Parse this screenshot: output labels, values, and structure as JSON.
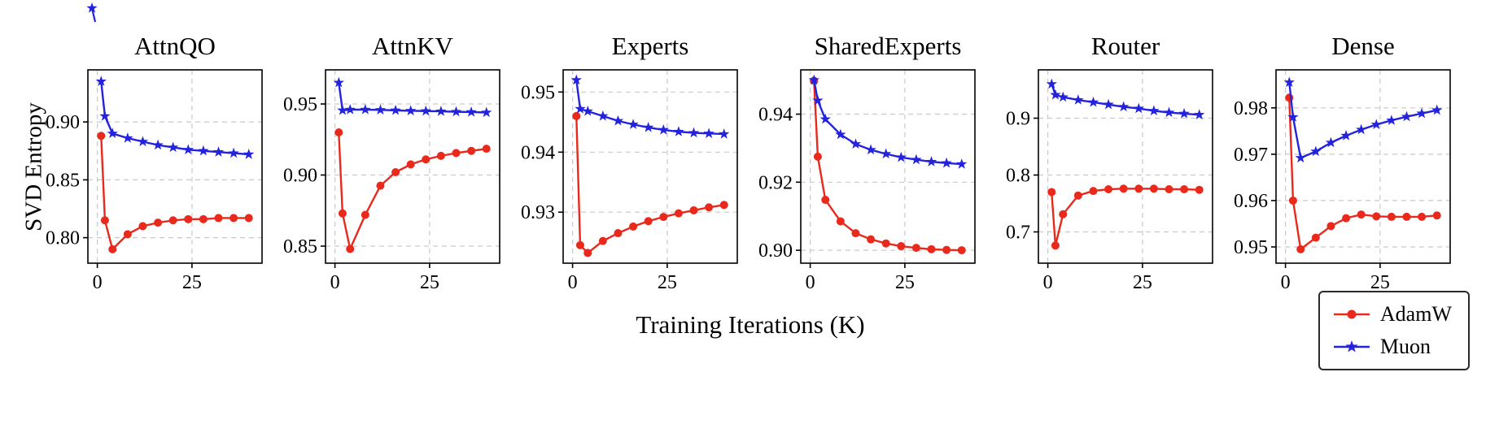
{
  "figure": {
    "ylabel": "SVD Entropy",
    "xlabel": "Training Iterations (K)",
    "legend": [
      {
        "label": "AdamW",
        "color": "#e8291c",
        "marker": "circle"
      },
      {
        "label": "Muon",
        "color": "#2323dd",
        "marker": "star"
      }
    ]
  },
  "chart_data": {
    "type": "line",
    "x": [
      1,
      2,
      4,
      8,
      12,
      16,
      20,
      24,
      28,
      32,
      36,
      40
    ],
    "xlim": [
      -2.5,
      43.5
    ],
    "xticks": [
      0,
      25
    ],
    "xtick_labels": [
      "0",
      "25"
    ],
    "xlabel": "Training Iterations (K)",
    "ylabel": "SVD Entropy",
    "grid": true,
    "legend_position": "bottom-right",
    "colors": {
      "AdamW": "#e8291c",
      "Muon": "#2323dd"
    },
    "markers": {
      "AdamW": "circle",
      "Muon": "star"
    },
    "charts": [
      {
        "title": "AttnQO",
        "ylim": [
          0.778,
          0.945
        ],
        "yticks": [
          0.8,
          0.85,
          0.9
        ],
        "ytick_labels": [
          "0.80",
          "0.85",
          "0.90"
        ],
        "series": [
          {
            "name": "AdamW",
            "values": [
              0.888,
              0.815,
              0.79,
              0.803,
              0.81,
              0.813,
              0.815,
              0.816,
              0.816,
              0.817,
              0.817,
              0.817
            ]
          },
          {
            "name": "Muon",
            "values": [
              0.935,
              0.905,
              0.89,
              0.886,
              0.883,
              0.88,
              0.878,
              0.876,
              0.875,
              0.874,
              0.873,
              0.872
            ]
          }
        ]
      },
      {
        "title": "AttnKV",
        "ylim": [
          0.838,
          0.974
        ],
        "yticks": [
          0.85,
          0.9,
          0.95
        ],
        "ytick_labels": [
          "0.85",
          "0.90",
          "0.95"
        ],
        "series": [
          {
            "name": "AdamW",
            "values": [
              0.93,
              0.873,
              0.848,
              0.872,
              0.8925,
              0.902,
              0.9075,
              0.911,
              0.9135,
              0.9155,
              0.917,
              0.9185
            ]
          },
          {
            "name": "Muon",
            "values": [
              0.965,
              0.9455,
              0.946,
              0.946,
              0.9458,
              0.9455,
              0.9452,
              0.945,
              0.9448,
              0.9445,
              0.9443,
              0.944
            ]
          }
        ]
      },
      {
        "title": "Experts",
        "ylim": [
          0.9215,
          0.9537
        ],
        "yticks": [
          0.93,
          0.94,
          0.95
        ],
        "ytick_labels": [
          "0.93",
          "0.94",
          "0.95"
        ],
        "series": [
          {
            "name": "AdamW",
            "values": [
              0.946,
              0.9245,
              0.9232,
              0.9252,
              0.9265,
              0.9276,
              0.9285,
              0.9292,
              0.9298,
              0.9303,
              0.9308,
              0.9312
            ]
          },
          {
            "name": "Muon",
            "values": [
              0.952,
              0.9472,
              0.9468,
              0.946,
              0.9452,
              0.9446,
              0.9441,
              0.9437,
              0.9434,
              0.9432,
              0.9431,
              0.943
            ]
          }
        ]
      },
      {
        "title": "SharedExperts",
        "ylim": [
          0.8962,
          0.953
        ],
        "yticks": [
          0.9,
          0.92,
          0.94
        ],
        "ytick_labels": [
          "0.90",
          "0.92",
          "0.94"
        ],
        "series": [
          {
            "name": "AdamW",
            "values": [
              0.9498,
              0.9275,
              0.9148,
              0.9085,
              0.905,
              0.9032,
              0.902,
              0.9012,
              0.9007,
              0.9003,
              0.9001,
              0.9
            ]
          },
          {
            "name": "Muon",
            "values": [
              0.95,
              0.944,
              0.9385,
              0.934,
              0.9312,
              0.9295,
              0.9283,
              0.9273,
              0.9266,
              0.926,
              0.9256,
              0.9253
            ]
          }
        ]
      },
      {
        "title": "Router",
        "ylim": [
          0.645,
          0.985
        ],
        "yticks": [
          0.7,
          0.8,
          0.9
        ],
        "ytick_labels": [
          "0.7",
          "0.8",
          "0.9"
        ],
        "series": [
          {
            "name": "AdamW",
            "values": [
              0.77,
              0.676,
              0.731,
              0.764,
              0.772,
              0.775,
              0.776,
              0.776,
              0.776,
              0.775,
              0.775,
              0.774
            ]
          },
          {
            "name": "Muon",
            "values": [
              0.96,
              0.941,
              0.937,
              0.932,
              0.928,
              0.924,
              0.92,
              0.917,
              0.913,
              0.91,
              0.908,
              0.906
            ]
          }
        ]
      },
      {
        "title": "Dense",
        "ylim": [
          0.9465,
          0.9882
        ],
        "yticks": [
          0.95,
          0.96,
          0.97,
          0.98
        ],
        "ytick_labels": [
          "0.95",
          "0.96",
          "0.97",
          "0.98"
        ],
        "series": [
          {
            "name": "AdamW",
            "values": [
              0.9822,
              0.96,
              0.9495,
              0.952,
              0.9545,
              0.9562,
              0.957,
              0.9566,
              0.9565,
              0.9565,
              0.9565,
              0.9568
            ]
          },
          {
            "name": "Muon",
            "values": [
              0.9855,
              0.978,
              0.9692,
              0.9706,
              0.9725,
              0.974,
              0.9753,
              0.9764,
              0.9773,
              0.9781,
              0.9788,
              0.9795
            ]
          }
        ]
      }
    ]
  }
}
